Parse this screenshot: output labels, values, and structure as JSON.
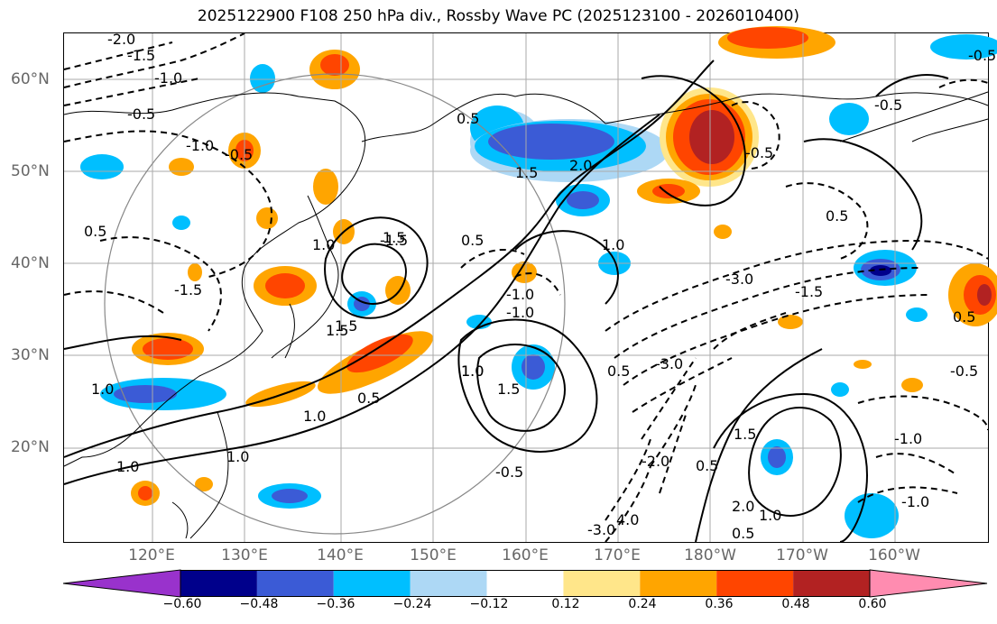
{
  "title": "2025122900 F108 250 hPa div., Rossby Wave PC (2025123100 - 2026010400)",
  "lat_labels": [
    "60°N",
    "50°N",
    "40°N",
    "30°N",
    "20°N"
  ],
  "lon_labels": [
    "120°E",
    "130°E",
    "140°E",
    "150°E",
    "160°E",
    "170°E",
    "180°W",
    "170°W",
    "160°W"
  ],
  "colorbar": {
    "ticks": [
      "−0.60",
      "−0.48",
      "−0.36",
      "−0.24",
      "−0.12",
      "0.12",
      "0.24",
      "0.36",
      "0.48",
      "0.60"
    ],
    "colors": [
      "#9932cc",
      "#00008b",
      "#3b5bd6",
      "#00bfff",
      "#add8f5",
      "#ffffff",
      "#ffe68a",
      "#ffa500",
      "#ff4500",
      "#b22222",
      "#ff8cb0"
    ]
  },
  "contour_labels": [
    "-2.0",
    "-1.5",
    "-1.0",
    "-0.5",
    "-1.0",
    "-0.5",
    "0.5",
    "-1.5",
    "1.5",
    "1.0",
    "-1.5",
    "-1.0",
    "0.5",
    "1.5",
    "1.0",
    "0.5",
    "2.0",
    "1.0",
    "-0.5",
    "1.0",
    "0.5",
    "-0.5",
    "0.5",
    "-3.0",
    "-1.5",
    "-3.0",
    "-0.5",
    "-1.0",
    "1.0",
    "1.5",
    "0.5",
    "2.0",
    "1.0",
    "0.5",
    "1.5",
    "1.0",
    "-0.5",
    "-3.0",
    "4.0",
    "-2.0",
    "-1.0",
    "-1.0",
    "1.0",
    "0.5",
    "1.0",
    "1.5",
    "0.5",
    "-0.5",
    "1.5"
  ]
}
